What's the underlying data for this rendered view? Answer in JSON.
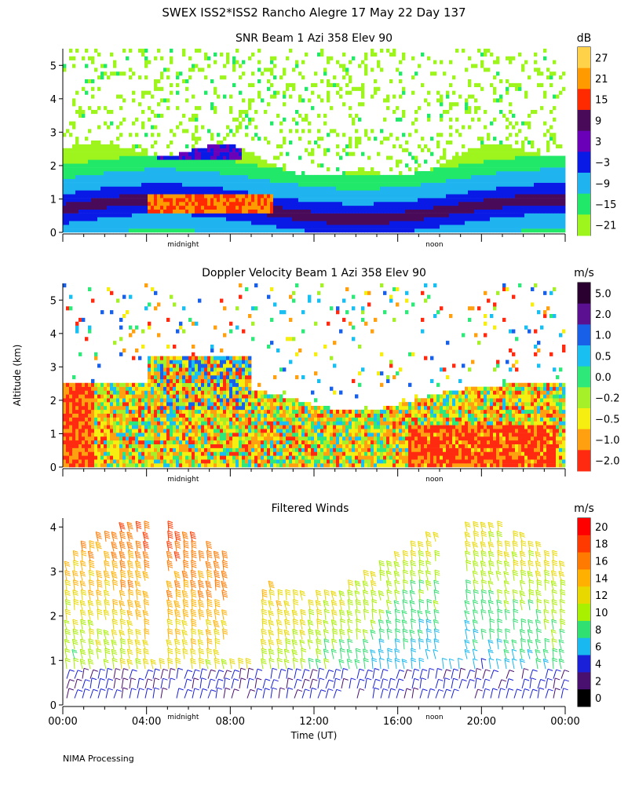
{
  "header": {
    "title": "SWEX ISS2*ISS2 Rancho Alegre  17 May 22 Day 137",
    "y_axis_label": "Altitude (km)",
    "x_axis_label": "Time (UT)",
    "footer": "NIMA Processing"
  },
  "chart_data": [
    {
      "type": "heatmap",
      "title": "SNR Beam 1 Azi 358 Elev 90",
      "xlim": [
        0,
        24
      ],
      "ylim": [
        0,
        5.5
      ],
      "y_ticks": [
        "0",
        "1",
        "2",
        "3",
        "4",
        "5"
      ],
      "y_tick_values": [
        0,
        1,
        2,
        3,
        4,
        5
      ],
      "time_markers": [
        {
          "label": "midnight",
          "t": 5.75
        },
        {
          "label": "noon",
          "t": 17.75
        }
      ],
      "colorbar": {
        "unit": "dB",
        "labels": [
          "27",
          "21",
          "15",
          "9",
          "3",
          "−3",
          "−9",
          "−15",
          "−21"
        ],
        "colors": [
          "#ffd24a",
          "#ff9a00",
          "#ff2a00",
          "#4a0a5a",
          "#6a00b8",
          "#0a1ae6",
          "#1fb4f0",
          "#22e86a",
          "#9ef51e"
        ]
      }
    },
    {
      "type": "heatmap",
      "title": "Doppler Velocity Beam 1 Azi 358 Elev 90",
      "xlim": [
        0,
        24
      ],
      "ylim": [
        0,
        5.5
      ],
      "y_ticks": [
        "0",
        "1",
        "2",
        "3",
        "4",
        "5"
      ],
      "y_tick_values": [
        0,
        1,
        2,
        3,
        4,
        5
      ],
      "time_markers": [
        {
          "label": "midnight",
          "t": 5.75
        },
        {
          "label": "noon",
          "t": 17.75
        }
      ],
      "colorbar": {
        "unit": "m/s",
        "labels": [
          "5.0",
          "2.0",
          "1.0",
          "0.5",
          "0.0",
          "−0.2",
          "−0.5",
          "−1.0",
          "−2.0"
        ],
        "colors": [
          "#2a0030",
          "#5a1090",
          "#1860e8",
          "#19bff0",
          "#2ee87a",
          "#a6f02a",
          "#f5ee10",
          "#ffa010",
          "#ff2a10"
        ]
      }
    },
    {
      "type": "wind_barbs",
      "title": "Filtered Winds",
      "xlim": [
        0,
        24
      ],
      "ylim": [
        0,
        4.2
      ],
      "y_ticks": [
        "0",
        "1",
        "2",
        "3",
        "4"
      ],
      "y_tick_values": [
        0,
        1,
        2,
        3,
        4
      ],
      "x_ticks": [
        "00:00",
        "04:00",
        "08:00",
        "12:00",
        "16:00",
        "20:00",
        "00:00"
      ],
      "x_tick_values": [
        0,
        4,
        8,
        12,
        16,
        20,
        24
      ],
      "time_markers": [
        {
          "label": "midnight",
          "t": 5.75
        },
        {
          "label": "noon",
          "t": 17.75
        }
      ],
      "colorbar": {
        "unit": "m/s",
        "labels": [
          "20",
          "18",
          "16",
          "14",
          "12",
          "10",
          "8",
          "6",
          "4",
          "2",
          "0"
        ],
        "colors": [
          "#ff0000",
          "#ff3a00",
          "#ff7a00",
          "#ffb000",
          "#e8d800",
          "#a8f000",
          "#30e070",
          "#19b8f0",
          "#1a20d8",
          "#4a1070",
          "#000000"
        ]
      }
    }
  ]
}
